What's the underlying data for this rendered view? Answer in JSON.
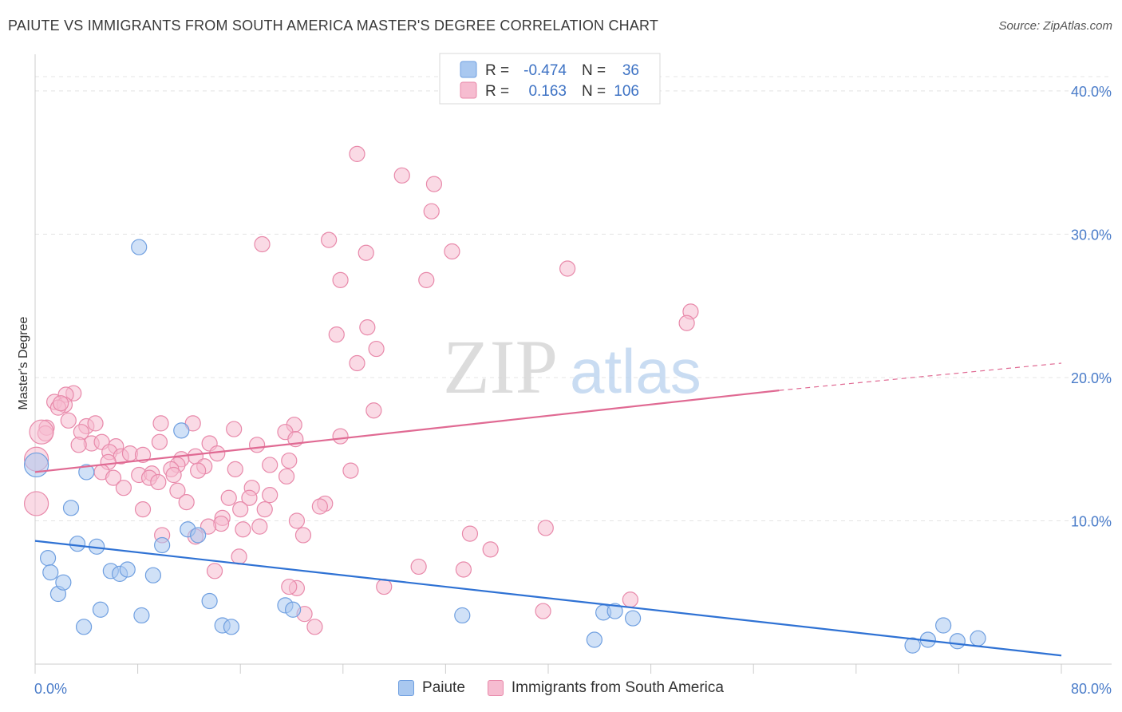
{
  "header": {
    "title": "PAIUTE VS IMMIGRANTS FROM SOUTH AMERICA MASTER'S DEGREE CORRELATION CHART",
    "source": "Source: ZipAtlas.com"
  },
  "watermark": {
    "zip": "ZIP",
    "atlas": "atlas"
  },
  "colors": {
    "paiute_fill": "#a9c8f0",
    "paiute_stroke": "#6f9fe0",
    "paiute_line": "#2f72d4",
    "imm_fill": "#f6bcd0",
    "imm_stroke": "#e889aa",
    "imm_line": "#e06a93",
    "tick_blue": "#4a7cc9"
  },
  "legend": {
    "rows": [
      {
        "r_label": "R =",
        "r_value": "-0.474",
        "n_label": "N =",
        "n_value": "36"
      },
      {
        "r_label": "R =",
        "r_value": "0.163",
        "n_label": "N =",
        "n_value": "106"
      }
    ]
  },
  "bottom_legend": {
    "items": [
      {
        "label": "Paiute"
      },
      {
        "label": "Immigrants from South America"
      }
    ]
  },
  "chart_data": {
    "type": "scatter",
    "title": "PAIUTE VS IMMIGRANTS FROM SOUTH AMERICA MASTER'S DEGREE CORRELATION CHART",
    "xlabel": "",
    "ylabel": "Master's Degree",
    "xlim": [
      0,
      80
    ],
    "ylim": [
      0,
      42
    ],
    "x_tick_labels": [
      "0.0%",
      "80.0%"
    ],
    "y_ticks": [
      10,
      20,
      30,
      40
    ],
    "y_tick_labels": [
      "10.0%",
      "20.0%",
      "30.0%",
      "40.0%"
    ],
    "grid": true,
    "series": [
      {
        "name": "Paiute",
        "r": -0.474,
        "n": 36,
        "trend": {
          "x0": 0,
          "y0": 8.6,
          "x1": 80,
          "y1": 0.6
        },
        "points": [
          [
            8.1,
            29.1
          ],
          [
            0.1,
            13.9
          ],
          [
            1.0,
            7.4
          ],
          [
            1.2,
            6.4
          ],
          [
            1.8,
            4.9
          ],
          [
            2.2,
            5.7
          ],
          [
            2.8,
            10.9
          ],
          [
            3.3,
            8.4
          ],
          [
            3.8,
            2.6
          ],
          [
            4.0,
            13.4
          ],
          [
            4.8,
            8.2
          ],
          [
            5.1,
            3.8
          ],
          [
            5.9,
            6.5
          ],
          [
            6.6,
            6.3
          ],
          [
            7.2,
            6.6
          ],
          [
            8.3,
            3.4
          ],
          [
            9.2,
            6.2
          ],
          [
            9.9,
            8.3
          ],
          [
            11.4,
            16.3
          ],
          [
            11.9,
            9.4
          ],
          [
            12.7,
            9.0
          ],
          [
            13.6,
            4.4
          ],
          [
            14.6,
            2.7
          ],
          [
            15.3,
            2.6
          ],
          [
            19.5,
            4.1
          ],
          [
            20.1,
            3.8
          ],
          [
            33.3,
            3.4
          ],
          [
            43.6,
            1.7
          ],
          [
            44.3,
            3.6
          ],
          [
            45.2,
            3.7
          ],
          [
            46.6,
            3.2
          ],
          [
            68.4,
            1.3
          ],
          [
            69.6,
            1.7
          ],
          [
            70.8,
            2.7
          ],
          [
            71.9,
            1.6
          ],
          [
            73.5,
            1.8
          ]
        ]
      },
      {
        "name": "Immigrants from South America",
        "r": 0.163,
        "n": 106,
        "trend": {
          "x0": 0,
          "y0": 13.4,
          "x1": 58,
          "y1": 19.1
        },
        "trend_dashed": {
          "x0": 58,
          "y0": 19.1,
          "x1": 80,
          "y1": 21.0
        },
        "points": [
          [
            25.1,
            35.6
          ],
          [
            28.6,
            34.1
          ],
          [
            31.1,
            33.5
          ],
          [
            30.9,
            31.6
          ],
          [
            22.9,
            29.6
          ],
          [
            17.7,
            29.3
          ],
          [
            25.8,
            28.7
          ],
          [
            32.5,
            28.8
          ],
          [
            41.5,
            27.6
          ],
          [
            23.8,
            26.8
          ],
          [
            30.5,
            26.8
          ],
          [
            51.1,
            24.6
          ],
          [
            50.8,
            23.8
          ],
          [
            25.9,
            23.5
          ],
          [
            23.5,
            23.0
          ],
          [
            26.6,
            22.0
          ],
          [
            25.1,
            21.0
          ],
          [
            3.0,
            18.9
          ],
          [
            2.4,
            18.8
          ],
          [
            1.5,
            18.3
          ],
          [
            2.3,
            18.1
          ],
          [
            1.8,
            17.9
          ],
          [
            2.6,
            17.0
          ],
          [
            26.4,
            17.7
          ],
          [
            0.9,
            16.5
          ],
          [
            0.8,
            16.1
          ],
          [
            4.0,
            16.6
          ],
          [
            4.7,
            16.8
          ],
          [
            9.8,
            16.8
          ],
          [
            12.3,
            16.8
          ],
          [
            15.5,
            16.4
          ],
          [
            20.2,
            16.7
          ],
          [
            19.5,
            16.2
          ],
          [
            3.6,
            16.2
          ],
          [
            4.4,
            15.4
          ],
          [
            5.2,
            15.5
          ],
          [
            6.3,
            15.2
          ],
          [
            9.7,
            15.5
          ],
          [
            13.6,
            15.4
          ],
          [
            20.3,
            15.7
          ],
          [
            23.8,
            15.9
          ],
          [
            17.3,
            15.3
          ],
          [
            3.4,
            15.3
          ],
          [
            5.8,
            14.8
          ],
          [
            6.7,
            14.5
          ],
          [
            7.4,
            14.7
          ],
          [
            8.4,
            14.6
          ],
          [
            12.5,
            14.5
          ],
          [
            14.2,
            14.7
          ],
          [
            11.4,
            14.3
          ],
          [
            19.8,
            14.2
          ],
          [
            5.7,
            14.1
          ],
          [
            11.1,
            13.9
          ],
          [
            13.2,
            13.8
          ],
          [
            15.6,
            13.6
          ],
          [
            18.3,
            13.9
          ],
          [
            10.6,
            13.6
          ],
          [
            12.7,
            13.5
          ],
          [
            24.6,
            13.5
          ],
          [
            5.2,
            13.4
          ],
          [
            8.1,
            13.2
          ],
          [
            9.1,
            13.3
          ],
          [
            10.8,
            13.2
          ],
          [
            19.6,
            13.1
          ],
          [
            8.9,
            13.0
          ],
          [
            6.1,
            13.0
          ],
          [
            9.6,
            12.7
          ],
          [
            6.9,
            12.3
          ],
          [
            16.9,
            12.3
          ],
          [
            11.1,
            12.1
          ],
          [
            16.7,
            11.6
          ],
          [
            18.3,
            11.8
          ],
          [
            11.8,
            11.3
          ],
          [
            15.1,
            11.6
          ],
          [
            22.6,
            11.2
          ],
          [
            22.2,
            11.0
          ],
          [
            8.4,
            10.8
          ],
          [
            16.0,
            10.8
          ],
          [
            17.9,
            10.8
          ],
          [
            14.6,
            10.2
          ],
          [
            20.4,
            10.0
          ],
          [
            14.5,
            9.8
          ],
          [
            17.5,
            9.6
          ],
          [
            13.5,
            9.6
          ],
          [
            16.2,
            9.4
          ],
          [
            39.8,
            9.5
          ],
          [
            33.9,
            9.1
          ],
          [
            9.9,
            9.0
          ],
          [
            20.9,
            9.0
          ],
          [
            12.5,
            8.9
          ],
          [
            35.5,
            8.0
          ],
          [
            15.9,
            7.5
          ],
          [
            29.9,
            6.8
          ],
          [
            33.4,
            6.6
          ],
          [
            14.0,
            6.5
          ],
          [
            20.4,
            5.3
          ],
          [
            19.8,
            5.4
          ],
          [
            27.2,
            5.4
          ],
          [
            46.4,
            4.5
          ],
          [
            39.6,
            3.7
          ],
          [
            21.0,
            3.5
          ],
          [
            21.8,
            2.6
          ],
          [
            0.1,
            14.3
          ],
          [
            0.1,
            11.2
          ],
          [
            0.5,
            16.2
          ],
          [
            2.0,
            18.2
          ]
        ]
      }
    ]
  }
}
